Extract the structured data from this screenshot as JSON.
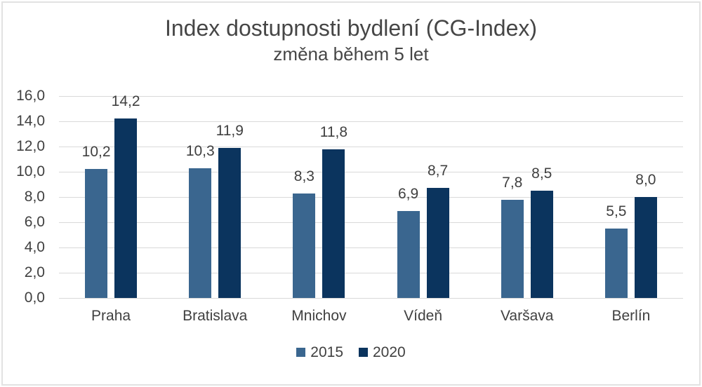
{
  "chart_data": {
    "type": "bar",
    "title": "Index dostupnosti bydlení (CG-Index)",
    "subtitle": "změna během 5 let",
    "categories": [
      "Praha",
      "Bratislava",
      "Mnichov",
      "Vídeň",
      "Varšava",
      "Berlín"
    ],
    "series": [
      {
        "name": "2015",
        "color": "#3a668f",
        "values": [
          10.2,
          10.3,
          8.3,
          6.9,
          7.8,
          5.5
        ]
      },
      {
        "name": "2020",
        "color": "#0b345e",
        "values": [
          14.2,
          11.9,
          11.8,
          8.7,
          8.5,
          8.0
        ]
      }
    ],
    "ylim": [
      0,
      16
    ],
    "ytick_step": 2,
    "ytick_labels": [
      "0,0",
      "2,0",
      "4,0",
      "6,0",
      "8,0",
      "10,0",
      "12,0",
      "14,0",
      "16,0"
    ],
    "value_labels": [
      "10,2",
      "14,2",
      "10,3",
      "11,9",
      "8,3",
      "11,8",
      "6,9",
      "8,7",
      "7,8",
      "8,5",
      "5,5",
      "8,0"
    ],
    "decimal_separator": ",",
    "grid": true,
    "gridline_color": "#d9d9d9",
    "text_color": "#404040",
    "legend_position": "bottom",
    "value_labels_shown": true
  }
}
